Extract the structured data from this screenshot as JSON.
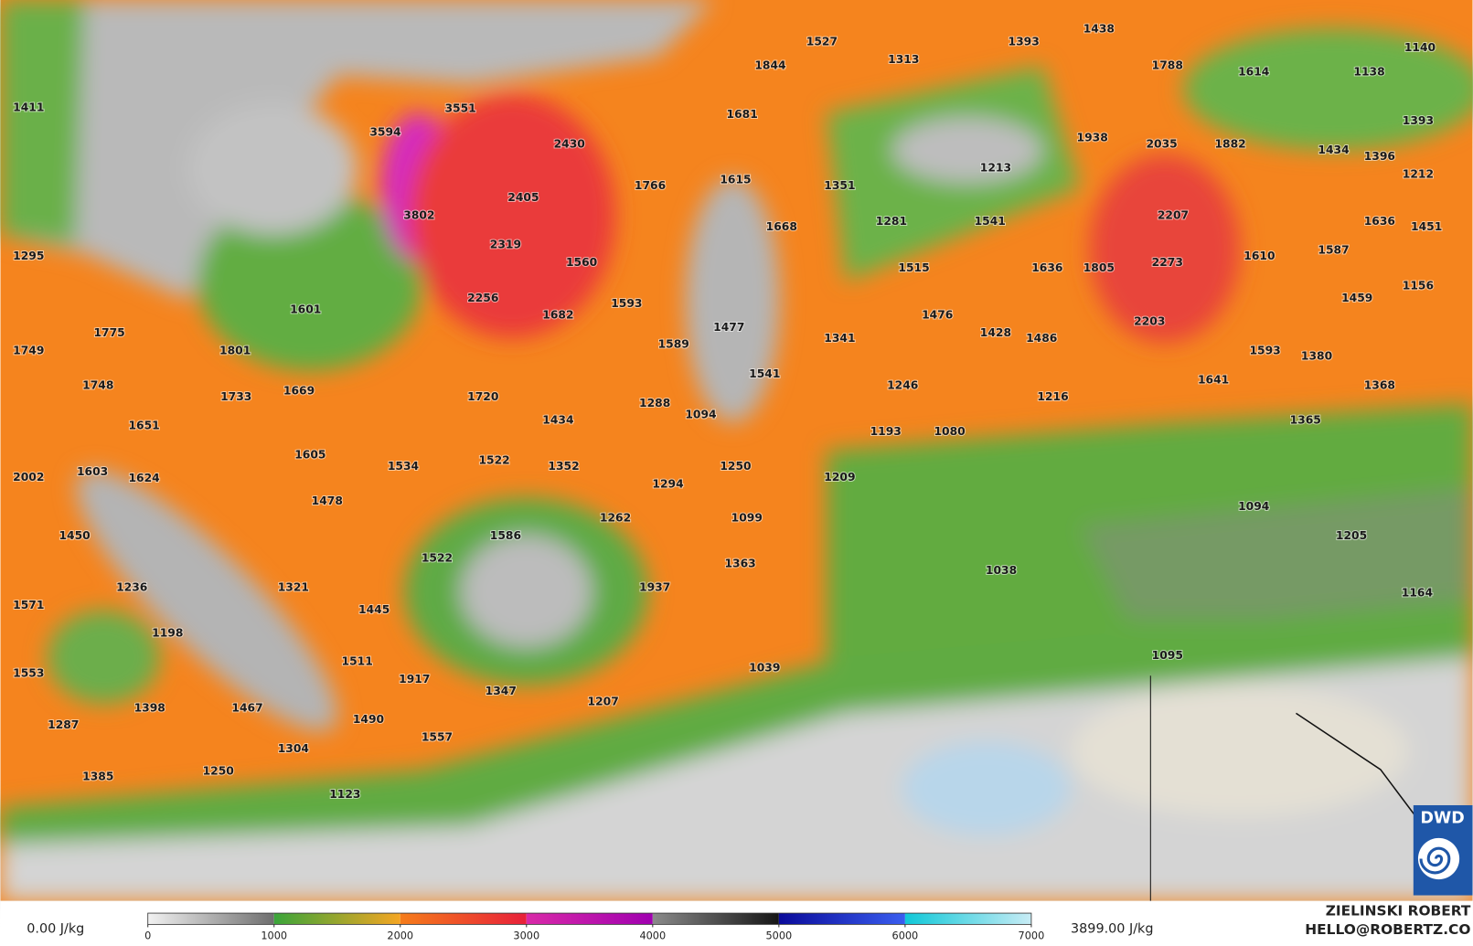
{
  "map": {
    "labels": [
      1411,
      1527,
      1844,
      1313,
      1393,
      1438,
      1788,
      1614,
      1140,
      1138,
      1393,
      3551,
      3594,
      2430,
      1681,
      1938,
      2035,
      1882,
      1434,
      1396,
      1212,
      1766,
      1615,
      1351,
      1213,
      2405,
      3802,
      1668,
      1281,
      1541,
      2207,
      1636,
      1451,
      1295,
      2319,
      1560,
      1515,
      1636,
      1805,
      2273,
      1610,
      1587,
      1156,
      2256,
      1593,
      1601,
      1682,
      1476,
      1459,
      2203,
      1775,
      1477,
      1341,
      1428,
      1486,
      1749,
      1801,
      1589,
      1593,
      1380,
      1541,
      1748,
      1733,
      1669,
      1720,
      1288,
      1094,
      1246,
      1216,
      1641,
      1368,
      1434,
      1365,
      1651,
      1193,
      1080,
      1605,
      1534,
      1522,
      1352,
      1250,
      2002,
      1603,
      1624,
      1294,
      1209,
      1478,
      1262,
      1099,
      1094,
      1450,
      1586,
      1205,
      1522,
      1363,
      1038,
      1236,
      1321,
      1937,
      1164,
      1571,
      1445,
      1198,
      1095,
      1553,
      1511,
      1917,
      1039,
      1347,
      1207,
      1398,
      1467,
      1490,
      1287,
      1557,
      1304,
      1250,
      1385,
      1123
    ]
  },
  "colorbar": {
    "min_label": "0.00 J/kg",
    "max_label": "3899.00 J/kg",
    "ticks": [
      0,
      1000,
      2000,
      3000,
      4000,
      5000,
      6000,
      7000
    ],
    "colors": [
      [
        "#f2f2f2",
        "#6e6e6e"
      ],
      [
        "#3aa53a",
        "#f5a623"
      ],
      [
        "#f57c1a",
        "#e8203a"
      ],
      [
        "#d92aa8",
        "#a000b0"
      ],
      [
        "#8a8a8a",
        "#151515"
      ],
      [
        "#0a0a9a",
        "#3a5ef0"
      ],
      [
        "#10c8d8",
        "#c8ecf5"
      ]
    ]
  },
  "credits": {
    "name": "ZIELINSKI ROBERT",
    "email": "HELLO@ROBERTZ.CO",
    "logo": "DWD"
  }
}
